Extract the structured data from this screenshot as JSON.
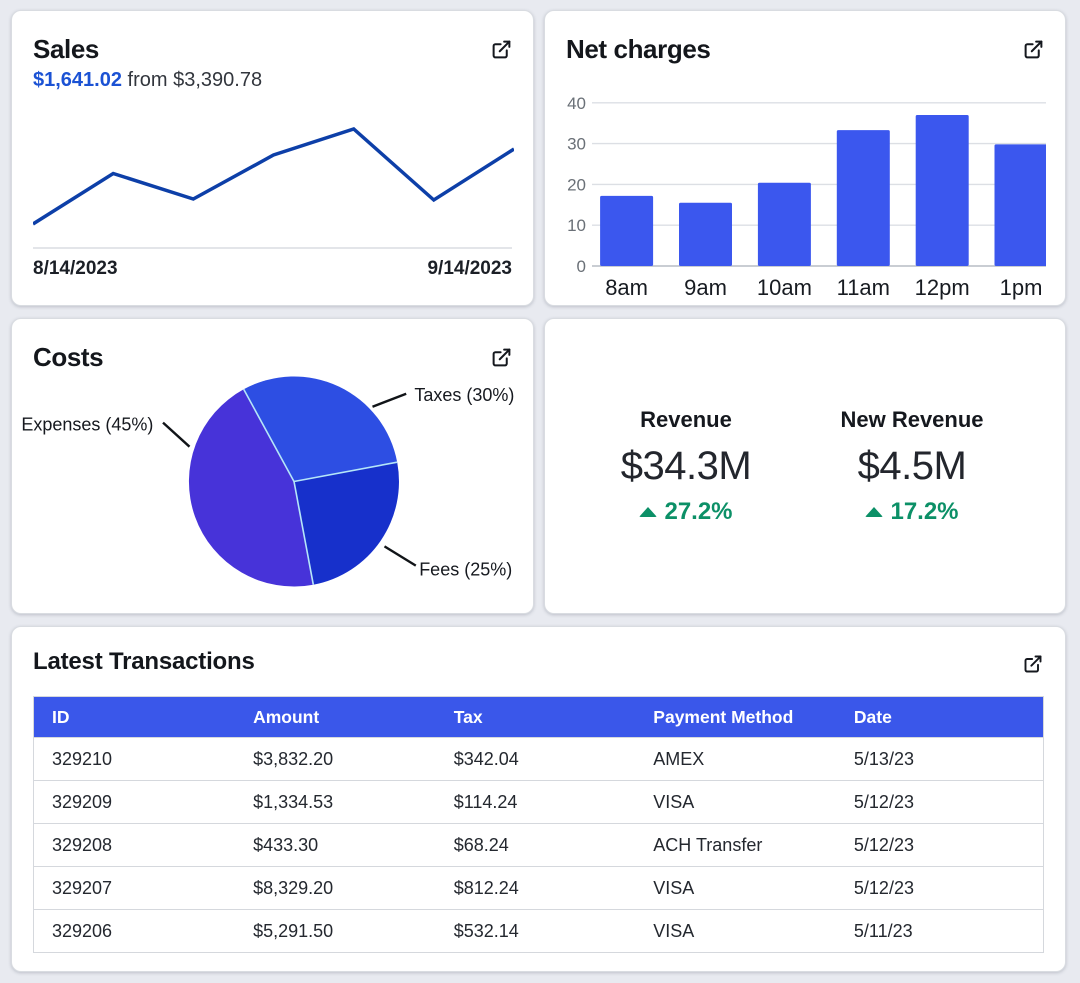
{
  "page": {
    "background": "#e8eaf0",
    "card_background": "#ffffff",
    "accent_blue": "#3a57ea"
  },
  "sales_card": {
    "title": "Sales",
    "amount": "$1,641.02",
    "amount_color": "#1b52d4",
    "compare_text": "from $3,390.78",
    "start_date": "8/14/2023",
    "end_date": "9/14/2023",
    "line_color": "#0d3fa8",
    "external_link_icon": "external-link-icon"
  },
  "net_charges_card": {
    "title": "Net charges",
    "bar_color": "#3b57ee",
    "grid_color": "#dcdfe4",
    "axis_color": "#c9cdd3",
    "tick_color": "#6a7077",
    "external_link_icon": "external-link-icon"
  },
  "costs_card": {
    "title": "Costs",
    "slice_border_color": "#b5e6f8",
    "leader_line_color": "#111418",
    "external_link_icon": "external-link-icon"
  },
  "stats_card": {
    "up_color": "#0c9067",
    "items": [
      {
        "label": "Revenue",
        "value": "$34.3M",
        "change": "27.2%",
        "direction": "up"
      },
      {
        "label": "New Revenue",
        "value": "$4.5M",
        "change": "17.2%",
        "direction": "up"
      }
    ]
  },
  "transactions_card": {
    "title": "Latest Transactions",
    "header_bg": "#3a57ea",
    "columns": [
      "ID",
      "Amount",
      "Tax",
      "Payment Method",
      "Date"
    ],
    "rows": [
      [
        "329210",
        "$3,832.20",
        "$342.04",
        "AMEX",
        "5/13/23"
      ],
      [
        "329209",
        "$1,334.53",
        "$114.24",
        "VISA",
        "5/12/23"
      ],
      [
        "329208",
        "$433.30",
        "$68.24",
        "ACH Transfer",
        "5/12/23"
      ],
      [
        "329207",
        "$8,329.20",
        "$812.24",
        "VISA",
        "5/12/23"
      ],
      [
        "329206",
        "$5,291.50",
        "$532.14",
        "VISA",
        "5/11/23"
      ]
    ],
    "external_link_icon": "external-link-icon"
  },
  "chart_data": [
    {
      "type": "line",
      "title": "Sales",
      "subtitle": "$1,641.02 from $3,390.78",
      "x_start_label": "8/14/2023",
      "x_end_label": "9/14/2023",
      "values": [
        11,
        61.5,
        36,
        80,
        106,
        35,
        86
      ],
      "value_scale": "relative (no y axis shown)",
      "line_color": "#0d3fa8",
      "grid": false,
      "legend": false
    },
    {
      "type": "bar",
      "title": "Net charges",
      "categories": [
        "8am",
        "9am",
        "10am",
        "11am",
        "12pm",
        "1pm"
      ],
      "values": [
        17.2,
        15.5,
        20.4,
        33.3,
        37,
        29.8
      ],
      "ylim": [
        0,
        40
      ],
      "yticks": [
        40,
        30,
        20,
        10,
        0
      ],
      "xlabel": "",
      "ylabel": "",
      "grid": true,
      "legend": false,
      "bar_color": "#3b57ee"
    },
    {
      "type": "pie",
      "title": "Costs",
      "labels": [
        "Taxes (30%)",
        "Fees (25%)",
        "Expenses (45%)"
      ],
      "values": [
        30,
        25,
        45
      ],
      "colors": [
        "#2d4ee3",
        "#1730cb",
        "#4733d9"
      ],
      "start_angle_deg": -118.6,
      "legend": false
    },
    {
      "type": "table",
      "title": "Latest Transactions",
      "columns": [
        "ID",
        "Amount",
        "Tax",
        "Payment Method",
        "Date"
      ],
      "rows": [
        [
          "329210",
          "$3,832.20",
          "$342.04",
          "AMEX",
          "5/13/23"
        ],
        [
          "329209",
          "$1,334.53",
          "$114.24",
          "VISA",
          "5/12/23"
        ],
        [
          "329208",
          "$433.30",
          "$68.24",
          "ACH Transfer",
          "5/12/23"
        ],
        [
          "329207",
          "$8,329.20",
          "$812.24",
          "VISA",
          "5/12/23"
        ],
        [
          "329206",
          "$5,291.50",
          "$532.14",
          "VISA",
          "5/11/23"
        ]
      ]
    }
  ]
}
